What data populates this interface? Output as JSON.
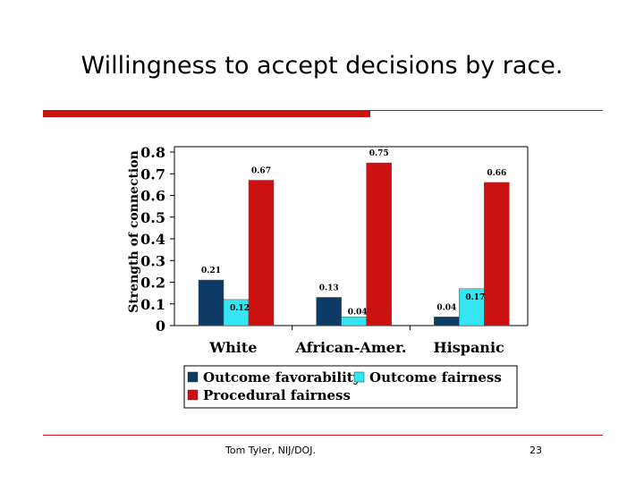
{
  "slide": {
    "title": "Willingness to accept decisions by race.",
    "footer": "Tom Tyler, NIJ/DOJ.",
    "page_number": "23"
  },
  "chart_data": {
    "type": "bar",
    "ylabel": "Strength of connection",
    "xlabel": "",
    "ylim": [
      0,
      0.8
    ],
    "yticks": [
      "0",
      "0.1",
      "0.2",
      "0.3",
      "0.4",
      "0.5",
      "0.6",
      "0.7",
      "0.8"
    ],
    "categories": [
      "White",
      "African-Amer.",
      "Hispanic"
    ],
    "series": [
      {
        "name": "Outcome favorability",
        "color": "#0d3b66",
        "values": [
          0.21,
          0.13,
          0.04
        ],
        "labels": [
          "0.21",
          "0.13",
          "0.04"
        ]
      },
      {
        "name": "Outcome fairness",
        "color": "#33e6f2",
        "values": [
          0.12,
          0.04,
          0.17
        ],
        "labels": [
          "0.12",
          "0.04",
          "0.17"
        ]
      },
      {
        "name": "Procedural fairness",
        "color": "#cc1111",
        "values": [
          0.67,
          0.75,
          0.66
        ],
        "labels": [
          "0.67",
          "0.75",
          "0.66"
        ]
      }
    ],
    "legend": "bottom",
    "grid": false
  }
}
